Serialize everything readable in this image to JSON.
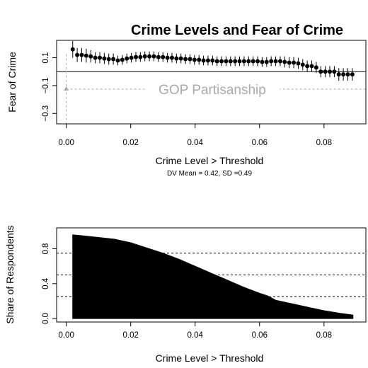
{
  "title": "Crime Levels and Fear of Crime",
  "chart_data": [
    {
      "type": "scatter",
      "ylabel": "Fear of Crime",
      "xlabel": "Crime Level > Threshold",
      "note": "DV Mean = 0.42, SD =0.49",
      "annotation": "GOP Partisanship",
      "xlim": [
        -0.003,
        0.093
      ],
      "ylim": [
        -0.375,
        0.225
      ],
      "x_ticks": [
        0.0,
        0.02,
        0.04,
        0.06,
        0.08
      ],
      "x_tick_labels": [
        "0.00",
        "0.02",
        "0.04",
        "0.06",
        "0.08"
      ],
      "y_ticks": [
        0.1,
        -0.1,
        -0.3
      ],
      "y_tick_labels": [
        "0.1",
        "−0.1",
        "−0.3"
      ],
      "zero_line": 0,
      "reference_point": {
        "x": 0.0,
        "y": -0.125,
        "lo": -0.375,
        "hi": 0.125
      },
      "series": [
        {
          "x": [
            0.002,
            0.0034,
            0.0048,
            0.0062,
            0.0076,
            0.009,
            0.0104,
            0.0118,
            0.0132,
            0.0146,
            0.016,
            0.0174,
            0.0188,
            0.0202,
            0.0216,
            0.023,
            0.0244,
            0.0258,
            0.0272,
            0.0286,
            0.03,
            0.0314,
            0.0328,
            0.0342,
            0.0356,
            0.037,
            0.0384,
            0.0398,
            0.0412,
            0.0426,
            0.044,
            0.0454,
            0.0468,
            0.0482,
            0.0496,
            0.051,
            0.0524,
            0.0538,
            0.0552,
            0.0566,
            0.058,
            0.0594,
            0.0608,
            0.0622,
            0.0636,
            0.065,
            0.0664,
            0.0678,
            0.0692,
            0.0706,
            0.072,
            0.0734,
            0.0748,
            0.0762,
            0.0776,
            0.079,
            0.0804,
            0.0818,
            0.0832,
            0.0846,
            0.086,
            0.0874,
            0.0888
          ],
          "y": [
            0.16,
            0.12,
            0.12,
            0.115,
            0.11,
            0.1,
            0.1,
            0.095,
            0.09,
            0.09,
            0.08,
            0.085,
            0.095,
            0.1,
            0.105,
            0.105,
            0.11,
            0.11,
            0.11,
            0.105,
            0.105,
            0.1,
            0.1,
            0.095,
            0.095,
            0.09,
            0.09,
            0.085,
            0.085,
            0.08,
            0.08,
            0.08,
            0.075,
            0.075,
            0.075,
            0.075,
            0.075,
            0.075,
            0.075,
            0.075,
            0.075,
            0.075,
            0.07,
            0.07,
            0.075,
            0.075,
            0.075,
            0.07,
            0.065,
            0.065,
            0.06,
            0.05,
            0.04,
            0.04,
            0.03,
            0.0,
            0.0,
            0.0,
            0.0,
            -0.02,
            -0.02,
            -0.02,
            -0.02
          ],
          "lo": [
            0.1,
            0.07,
            0.07,
            0.065,
            0.065,
            0.06,
            0.06,
            0.055,
            0.05,
            0.05,
            0.045,
            0.05,
            0.06,
            0.065,
            0.07,
            0.07,
            0.075,
            0.075,
            0.075,
            0.07,
            0.07,
            0.065,
            0.065,
            0.06,
            0.06,
            0.055,
            0.055,
            0.05,
            0.05,
            0.045,
            0.045,
            0.045,
            0.04,
            0.04,
            0.04,
            0.04,
            0.04,
            0.04,
            0.04,
            0.04,
            0.04,
            0.04,
            0.035,
            0.035,
            0.04,
            0.04,
            0.04,
            0.03,
            0.025,
            0.025,
            0.02,
            0.01,
            0.0,
            0.0,
            -0.01,
            -0.04,
            -0.04,
            -0.04,
            -0.04,
            -0.065,
            -0.065,
            -0.065,
            -0.065
          ],
          "hi": [
            0.22,
            0.17,
            0.17,
            0.165,
            0.155,
            0.14,
            0.14,
            0.135,
            0.13,
            0.13,
            0.115,
            0.12,
            0.13,
            0.135,
            0.14,
            0.14,
            0.145,
            0.145,
            0.145,
            0.14,
            0.14,
            0.135,
            0.135,
            0.13,
            0.13,
            0.125,
            0.125,
            0.12,
            0.12,
            0.115,
            0.115,
            0.115,
            0.11,
            0.11,
            0.11,
            0.11,
            0.11,
            0.11,
            0.11,
            0.11,
            0.11,
            0.11,
            0.105,
            0.105,
            0.11,
            0.11,
            0.11,
            0.11,
            0.105,
            0.105,
            0.1,
            0.09,
            0.08,
            0.08,
            0.07,
            0.04,
            0.04,
            0.04,
            0.04,
            0.025,
            0.025,
            0.025,
            0.025
          ]
        }
      ]
    },
    {
      "type": "area",
      "ylabel": "Share of Respondents",
      "xlabel": "Crime Level > Threshold",
      "xlim": [
        -0.003,
        0.093
      ],
      "ylim": [
        -0.04,
        1.04
      ],
      "x_ticks": [
        0.0,
        0.02,
        0.04,
        0.06,
        0.08
      ],
      "x_tick_labels": [
        "0.00",
        "0.02",
        "0.04",
        "0.06",
        "0.08"
      ],
      "y_ticks": [
        0.0,
        0.4,
        0.8
      ],
      "y_tick_labels": [
        "0.0",
        "0.4",
        "0.8"
      ],
      "reference_lines": [
        0.25,
        0.5,
        0.75
      ],
      "x": [
        0.002,
        0.005,
        0.01,
        0.015,
        0.02,
        0.025,
        0.03,
        0.035,
        0.04,
        0.0425,
        0.045,
        0.05,
        0.055,
        0.06,
        0.0625,
        0.065,
        0.07,
        0.075,
        0.08,
        0.085,
        0.089
      ],
      "y": [
        0.96,
        0.95,
        0.93,
        0.91,
        0.87,
        0.81,
        0.75,
        0.68,
        0.6,
        0.56,
        0.52,
        0.44,
        0.36,
        0.29,
        0.26,
        0.21,
        0.17,
        0.13,
        0.09,
        0.06,
        0.04
      ]
    }
  ]
}
